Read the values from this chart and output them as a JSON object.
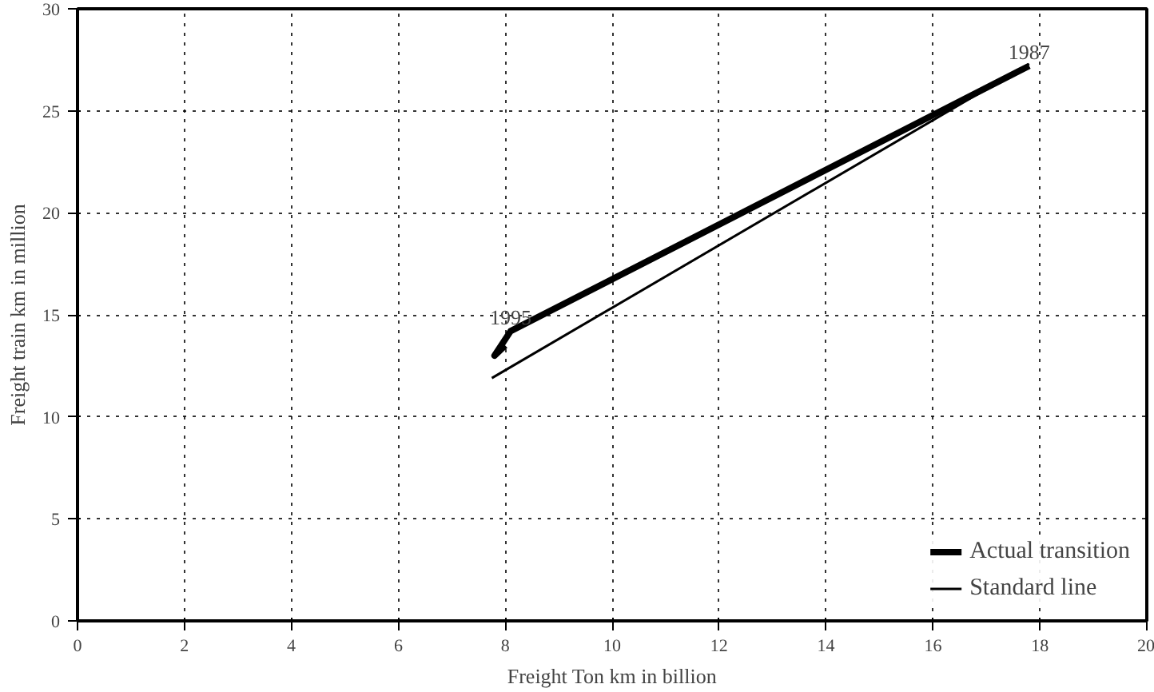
{
  "chart_data": {
    "type": "line",
    "xlabel": "Freight Ton km in billion",
    "ylabel": "Freight train km in million",
    "xlim": [
      0,
      20
    ],
    "ylim": [
      0,
      30
    ],
    "xticks": [
      0,
      2,
      4,
      6,
      8,
      10,
      12,
      14,
      16,
      18,
      20
    ],
    "yticks": [
      0,
      5,
      10,
      15,
      20,
      25,
      30
    ],
    "grid": true,
    "legend": "bottom right",
    "line_style": "solid",
    "marker": "none",
    "series": [
      {
        "name": "Actual transition",
        "color": "#000000",
        "x": [
          17.8,
          8.1,
          7.8,
          8.0
        ],
        "values": [
          27.2,
          14.2,
          13.0,
          13.5
        ]
      },
      {
        "name": "Standard line",
        "color": "#000000",
        "x": [
          7.75,
          17.8
        ],
        "values": [
          11.9,
          27.3
        ]
      }
    ],
    "annotations": [
      {
        "text": "1987",
        "x": 17.8,
        "y": 27.2
      },
      {
        "text": "1995",
        "x": 8.1,
        "y": 14.2
      }
    ]
  }
}
